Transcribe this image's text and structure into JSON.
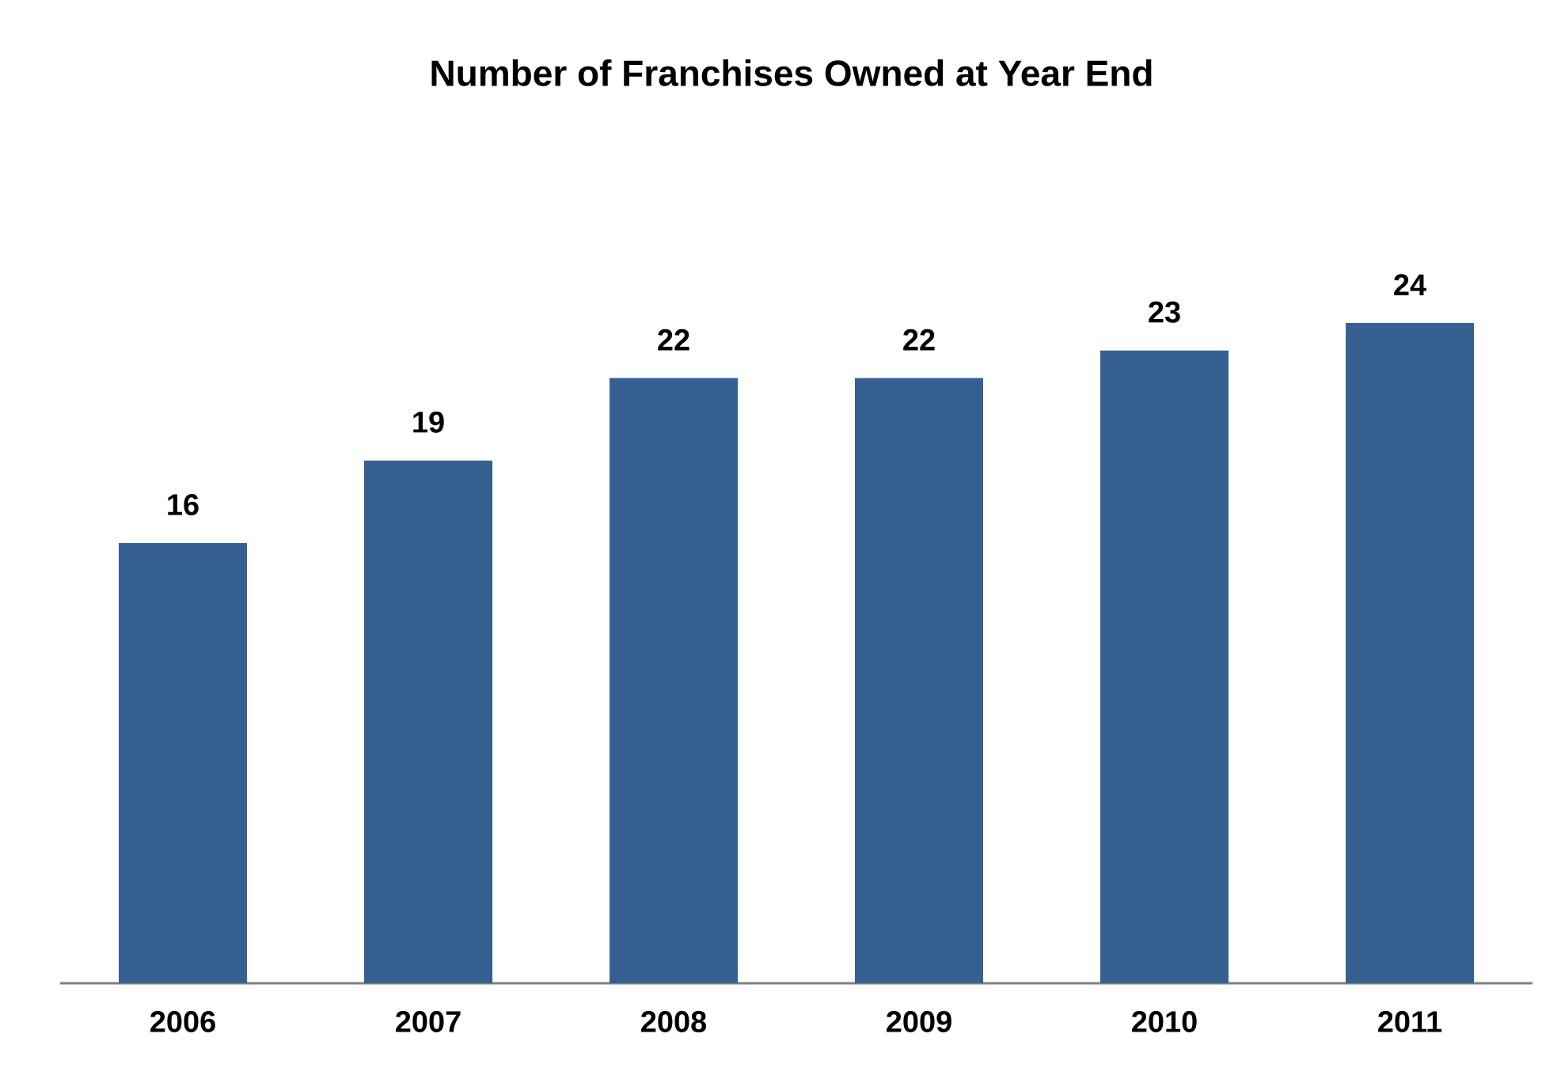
{
  "chart_data": {
    "type": "bar",
    "title": "Number of Franchises Owned at Year End",
    "categories": [
      "2006",
      "2007",
      "2008",
      "2009",
      "2010",
      "2011"
    ],
    "values": [
      16,
      19,
      22,
      22,
      23,
      24
    ],
    "color": "#376092",
    "data_labels": true
  }
}
